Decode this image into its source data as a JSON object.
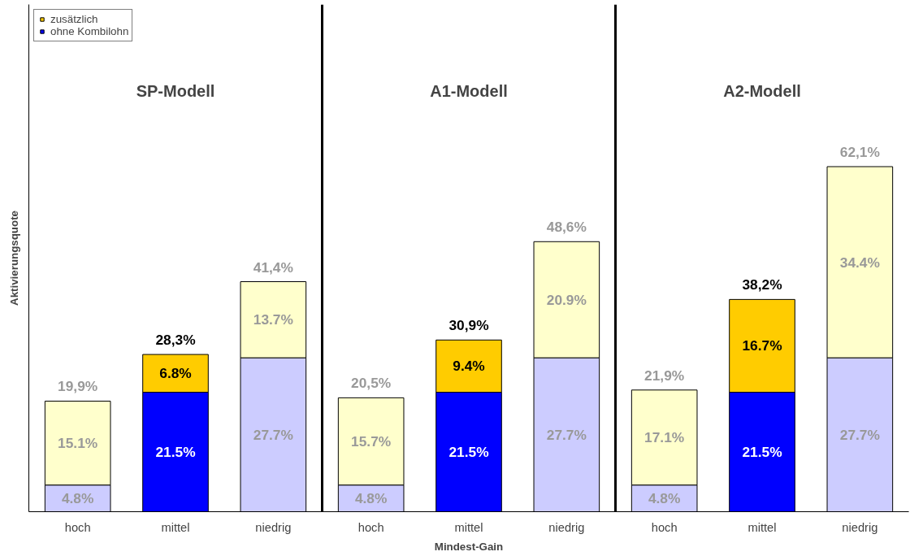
{
  "chart_data": {
    "type": "bar",
    "stacked": true,
    "categories": [
      "hoch",
      "mittel",
      "niedrig",
      "hoch",
      "mittel",
      "niedrig",
      "hoch",
      "mittel",
      "niedrig"
    ],
    "xlabel": "Mindest-Gain",
    "ylabel": "Aktivierungsquote",
    "series": [
      {
        "name": "ohne Kombilohn",
        "color": "#0000ff",
        "colors": [
          "#ccccff",
          "#0000ff",
          "#ccccff",
          "#ccccff",
          "#0000ff",
          "#ccccff",
          "#ccccff",
          "#0000ff",
          "#ccccff"
        ],
        "values": [
          4.8,
          21.5,
          27.7,
          4.8,
          21.5,
          27.7,
          4.8,
          21.5,
          27.7
        ],
        "value_labels": [
          "4.8%",
          "21.5%",
          "27.7%",
          "4.8%",
          "21.5%",
          "27.7%",
          "4.8%",
          "21.5%",
          "27.7%"
        ]
      },
      {
        "name": "zusätzlich",
        "color": "#ffcc00",
        "colors": [
          "#ffffcc",
          "#ffcc00",
          "#ffffcc",
          "#ffffcc",
          "#ffcc00",
          "#ffffcc",
          "#ffffcc",
          "#ffcc00",
          "#ffffcc"
        ],
        "values": [
          15.1,
          6.8,
          13.7,
          15.7,
          9.4,
          20.9,
          17.1,
          16.7,
          34.4
        ],
        "value_labels": [
          "15.1%",
          "6.8%",
          "13.7%",
          "15.7%",
          "9.4%",
          "20.9%",
          "17.1%",
          "16.7%",
          "34.4%"
        ]
      }
    ],
    "totals": [
      "19,9%",
      "28,3%",
      "41,4%",
      "20,5%",
      "30,9%",
      "48,6%",
      "21,9%",
      "38,2%",
      "62,1%"
    ],
    "annotations": [
      "SP-Modell",
      "A1-Modell",
      "A2-Modell"
    ],
    "legend": "top left",
    "grid": false
  }
}
